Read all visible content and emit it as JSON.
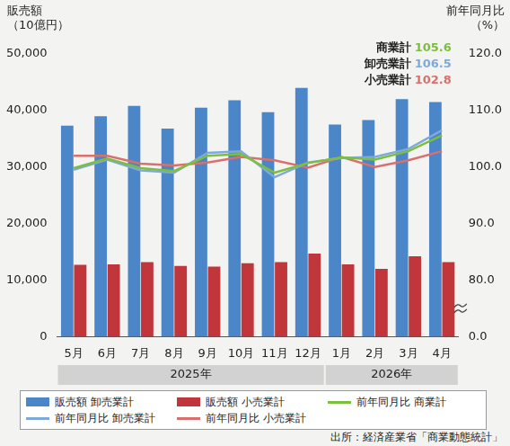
{
  "chart_data": {
    "type": "bar",
    "y_label": "販売額\n（10億円）",
    "y2_label": "前年同月比\n（%）",
    "source": "出所：経済産業省「商業動態統計」",
    "categories": [
      "5月",
      "6月",
      "7月",
      "8月",
      "9月",
      "10月",
      "11月",
      "12月",
      "1月",
      "2月",
      "3月",
      "4月"
    ],
    "groups": [
      {
        "label": "2025年",
        "categories": [
          "5月",
          "6月",
          "7月",
          "8月",
          "9月",
          "10月",
          "11月",
          "12月"
        ]
      },
      {
        "label": "2026年",
        "categories": [
          "1月",
          "2月",
          "3月",
          "4月"
        ]
      }
    ],
    "series": [
      {
        "name": "販売額 卸売業計",
        "type": "bar",
        "color": "#4a86c8",
        "axis": "y",
        "values": [
          37300,
          39000,
          40800,
          36800,
          40500,
          41800,
          39700,
          44000,
          37500,
          38300,
          42000,
          41500
        ]
      },
      {
        "name": "販売額 小売業計",
        "type": "bar",
        "color": "#c0363a",
        "axis": "y",
        "values": [
          12700,
          12800,
          13200,
          12500,
          12400,
          13000,
          13200,
          14700,
          12800,
          12000,
          14200,
          13200
        ]
      },
      {
        "name": "前年同月比 商業計",
        "type": "line",
        "color": "#7cbf3c",
        "axis": "y2",
        "marker": "none",
        "line_style": "solid",
        "end_label": "商業計",
        "values": [
          99.8,
          101.5,
          99.8,
          99.3,
          102.0,
          102.3,
          99.0,
          100.7,
          101.7,
          101.3,
          102.8,
          105.6
        ]
      },
      {
        "name": "前年同月比 卸売業計",
        "type": "line",
        "color": "#7fa9dc",
        "axis": "y2",
        "marker": "none",
        "line_style": "solid",
        "end_label": "卸売業計",
        "values": [
          99.5,
          101.3,
          99.4,
          99.0,
          102.5,
          102.8,
          98.2,
          100.8,
          101.6,
          101.8,
          103.2,
          106.5
        ]
      },
      {
        "name": "前年同月比 小売業計",
        "type": "line",
        "color": "#d9706b",
        "axis": "y2",
        "marker": "none",
        "line_style": "solid",
        "end_label": "小売業計",
        "values": [
          102.0,
          102.0,
          100.6,
          100.3,
          100.8,
          101.8,
          101.2,
          99.9,
          101.8,
          100.0,
          101.2,
          102.8
        ]
      }
    ],
    "ylim": [
      0,
      50000
    ],
    "yticks": [
      0,
      {
        "value": 10000,
        "label": "10,000"
      },
      {
        "value": 20000,
        "label": "20,000"
      },
      {
        "value": 30000,
        "label": "30,000"
      },
      {
        "value": 40000,
        "label": "40,000"
      },
      {
        "value": 50000,
        "label": "50,000"
      }
    ],
    "y2lim": [
      0,
      120
    ],
    "y2ticks": [
      {
        "value": 0,
        "label": "0.0"
      },
      {
        "value": 80,
        "label": "80.0"
      },
      {
        "value": 90,
        "label": "90.0"
      },
      {
        "value": 100,
        "label": "100.0"
      },
      {
        "value": 110,
        "label": "110.0"
      },
      {
        "value": 120,
        "label": "120.0"
      }
    ],
    "grid": false,
    "legend": "bottom"
  }
}
